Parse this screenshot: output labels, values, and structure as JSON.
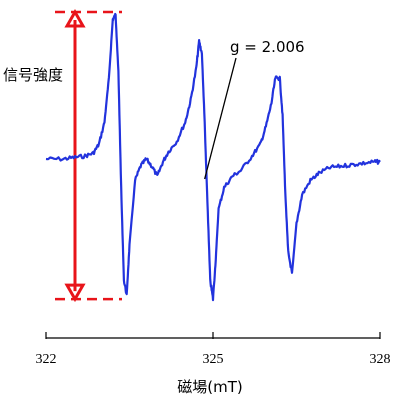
{
  "chart_data": {
    "type": "line",
    "title": "",
    "xlabel": "磁場(mT)",
    "ylabel": "信号強度",
    "xlim": [
      322,
      328
    ],
    "ylim": [
      -1,
      1
    ],
    "grid": false,
    "x_ticks": [
      "322",
      "325",
      "328"
    ],
    "annotation": {
      "text": "g = 2.006",
      "x": 324.85,
      "y": 0.0
    },
    "signal_range_arrow": {
      "top": 1.0,
      "bottom": -0.98,
      "x": 322.55
    },
    "series": [
      {
        "color": "#2233dd",
        "x": [
          322.0,
          322.3,
          322.5,
          322.7,
          322.85,
          322.95,
          323.05,
          323.13,
          323.2,
          323.25,
          323.3,
          323.35,
          323.4,
          323.45,
          323.5,
          323.6,
          323.7,
          323.8,
          323.9,
          324.0,
          324.1,
          324.2,
          324.35,
          324.5,
          324.6,
          324.7,
          324.75,
          324.8,
          324.85,
          324.9,
          324.95,
          325.0,
          325.05,
          325.1,
          325.2,
          325.35,
          325.5,
          325.7,
          325.85,
          325.95,
          326.05,
          326.12,
          326.2,
          326.25,
          326.3,
          326.35,
          326.42,
          326.5,
          326.6,
          326.75,
          326.9,
          327.1,
          327.3,
          327.5,
          327.7,
          327.9,
          328.0
        ],
        "values": [
          0.0,
          0.0,
          0.01,
          0.02,
          0.04,
          0.1,
          0.25,
          0.55,
          0.95,
          0.98,
          0.6,
          -0.2,
          -0.85,
          -0.95,
          -0.6,
          -0.15,
          -0.05,
          0.0,
          -0.05,
          -0.12,
          -0.02,
          0.05,
          0.12,
          0.25,
          0.4,
          0.62,
          0.8,
          0.72,
          0.25,
          -0.3,
          -0.85,
          -0.98,
          -0.7,
          -0.35,
          -0.2,
          -0.12,
          -0.08,
          0.02,
          0.1,
          0.22,
          0.38,
          0.55,
          0.55,
          0.3,
          -0.25,
          -0.65,
          -0.8,
          -0.45,
          -0.25,
          -0.15,
          -0.1,
          -0.06,
          -0.05,
          -0.04,
          -0.03,
          -0.02,
          -0.02
        ]
      }
    ]
  }
}
